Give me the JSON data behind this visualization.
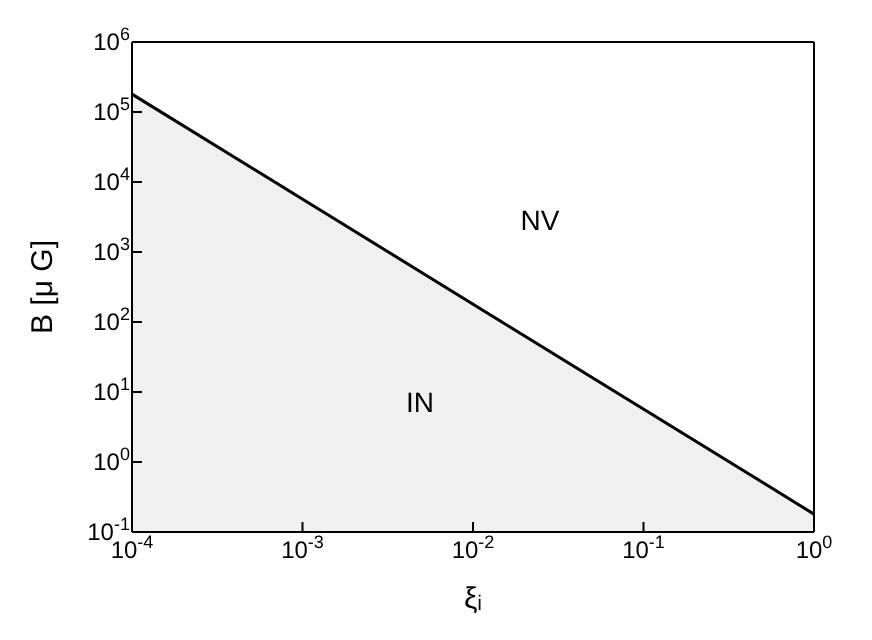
{
  "chart_data": {
    "type": "area",
    "xlabel": "ξᵢ",
    "ylabel": "B [μ G]",
    "log": "xy",
    "grid": false,
    "legend": false,
    "x": [
      0.0001,
      1
    ],
    "series": [
      {
        "color": "#000000",
        "values": [
          180000,
          0.18
        ]
      }
    ],
    "xlim": [
      0.0001,
      1
    ],
    "ylim": [
      0.1,
      1000000
    ],
    "xticks": [
      {
        "value": 0.0001,
        "label": "10$^{-4}$"
      },
      {
        "value": 0.001,
        "label": "10$^{-3}$"
      },
      {
        "value": 0.01,
        "label": "10$^{-2}$"
      },
      {
        "value": 0.1,
        "label": "10$^{-1}$"
      },
      {
        "value": 1,
        "label": "10$^{0}$"
      }
    ],
    "yticks": [
      {
        "value": 0.1,
        "label": "10$^{-1}$"
      },
      {
        "value": 1,
        "label": "10$^{0}$"
      },
      {
        "value": 10,
        "label": "10$^{1}$"
      },
      {
        "value": 100,
        "label": "10$^{2}$"
      },
      {
        "value": 1000,
        "label": "10$^{3}$"
      },
      {
        "value": 10000,
        "label": "10$^{4}$"
      },
      {
        "value": 100000,
        "label": "10$^{5}$"
      },
      {
        "value": 1000000,
        "label": "10$^{6}$"
      }
    ],
    "annotations": [
      "IN",
      "NV"
    ]
  }
}
